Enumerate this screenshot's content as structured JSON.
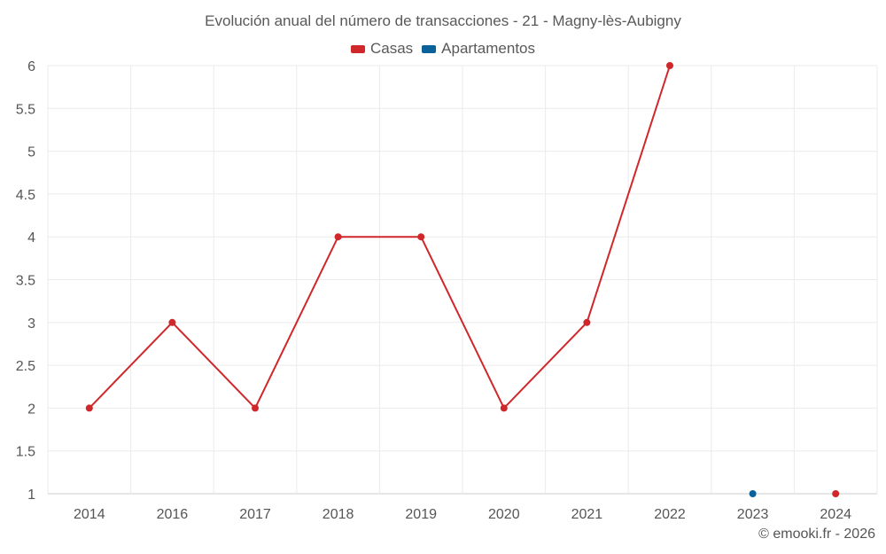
{
  "chart_data": {
    "type": "line",
    "title": "Evolución anual del número de transacciones - 21 - Magny-lès-Aubigny",
    "categories": [
      "2014",
      "2016",
      "2017",
      "2018",
      "2019",
      "2020",
      "2021",
      "2022",
      "2023",
      "2024"
    ],
    "y_ticks": [
      "1",
      "1.5",
      "2",
      "2.5",
      "3",
      "3.5",
      "4",
      "4.5",
      "5",
      "5.5",
      "6"
    ],
    "ylim": [
      1,
      6
    ],
    "xlabel": "",
    "ylabel": "",
    "grid": true,
    "legend_position": "top-center",
    "series": [
      {
        "name": "Casas",
        "color": "#d0272a",
        "values": [
          2,
          3,
          2,
          4,
          4,
          2,
          3,
          6,
          null,
          1
        ]
      },
      {
        "name": "Apartamentos",
        "color": "#0b6199",
        "values": [
          null,
          null,
          null,
          null,
          null,
          null,
          null,
          null,
          1,
          null
        ]
      }
    ]
  },
  "legend": {
    "items": [
      "Casas",
      "Apartamentos"
    ]
  },
  "credit": "© emooki.fr - 2026"
}
